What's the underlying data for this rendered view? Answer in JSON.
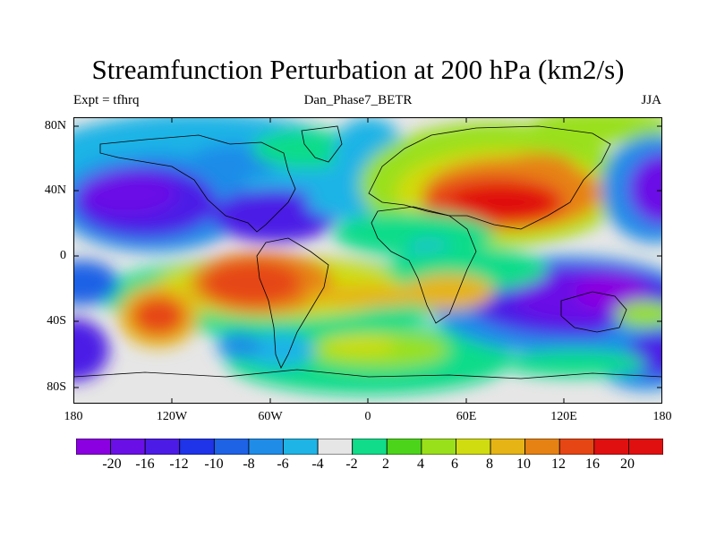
{
  "title": "Streamfunction Perturbation at 200 hPa (km2/s)",
  "left_label": "Expt = tfhrq",
  "center_label": "Dan_Phase7_BETR",
  "right_label": "JJA",
  "lat_ticks": [
    "80N",
    "40N",
    "0",
    "40S",
    "80S"
  ],
  "lon_ticks": [
    "180",
    "120W",
    "60W",
    "0",
    "60E",
    "120E",
    "180"
  ],
  "colorbar_labels": [
    "-20",
    "-16",
    "-12",
    "-10",
    "-8",
    "-6",
    "-4",
    "-2",
    "2",
    "4",
    "6",
    "8",
    "10",
    "12",
    "16",
    "20"
  ],
  "colors": {
    "levels": [
      "#8a00e0",
      "#6a10e6",
      "#4c1ce6",
      "#1f34e8",
      "#1e62e6",
      "#1f8ce8",
      "#1eb4e6",
      "#e6e6e6",
      "#10dc8a",
      "#4cd41a",
      "#9ae01a",
      "#d0dc10",
      "#e6b414",
      "#e68214",
      "#e64614",
      "#e01010"
    ]
  }
}
